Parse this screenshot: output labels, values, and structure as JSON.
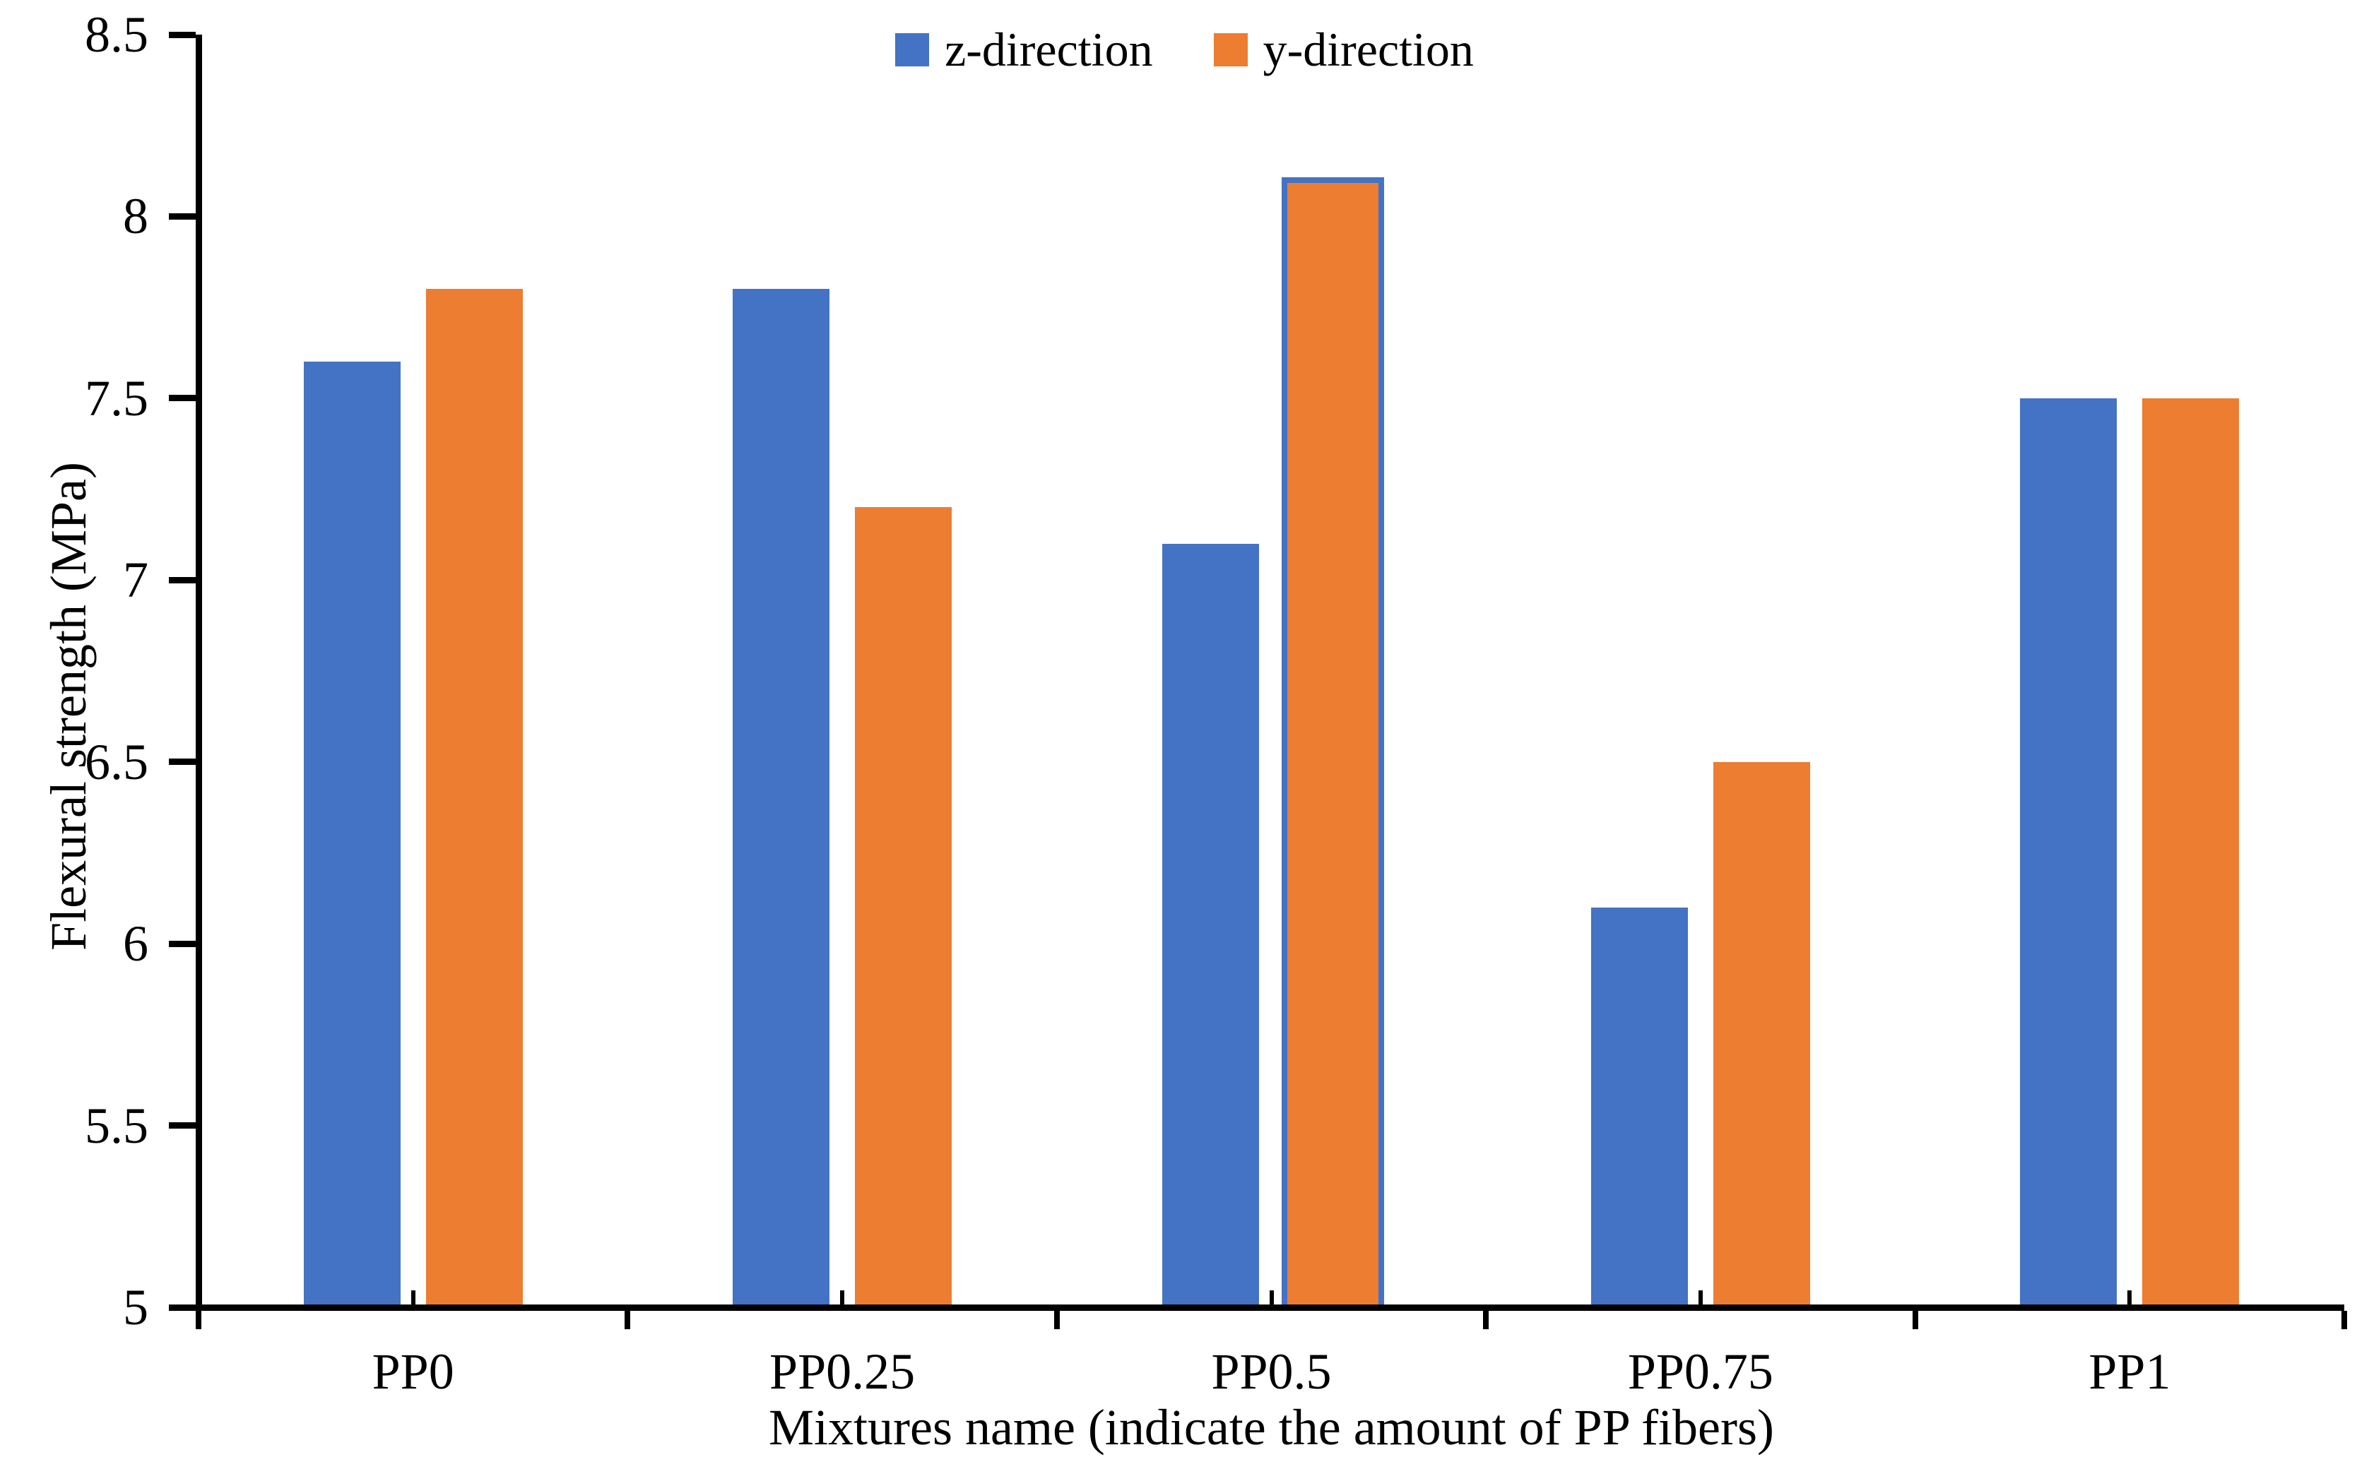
{
  "chart_data": {
    "type": "bar",
    "title": "",
    "categories": [
      "PP0",
      "PP0.25",
      "PP0.5",
      "PP0.75",
      "PP1"
    ],
    "series": [
      {
        "name": "z-direction",
        "color": "#4472C4",
        "values": [
          7.6,
          7.8,
          7.1,
          6.1,
          7.5
        ]
      },
      {
        "name": "y-direction",
        "color": "#ED7D31",
        "values": [
          7.8,
          7.2,
          8.1,
          6.5,
          7.5
        ],
        "bar_outline": [
          null,
          null,
          "#4472C4",
          null,
          null
        ]
      }
    ],
    "xlabel": "Mixtures name (indicate the amount of PP fibers)",
    "ylabel": "Flexural strength (MPa)",
    "ylim": [
      5,
      8.5
    ],
    "ytick_step": 0.5,
    "yticks": [
      "8.5",
      "8",
      "7.5",
      "7",
      "6.5",
      "6",
      "5.5",
      "5"
    ],
    "legend_position": "top-center",
    "grid": false,
    "axis_color": "#000000",
    "text_color": "#000000",
    "background": "#FFFFFF"
  }
}
